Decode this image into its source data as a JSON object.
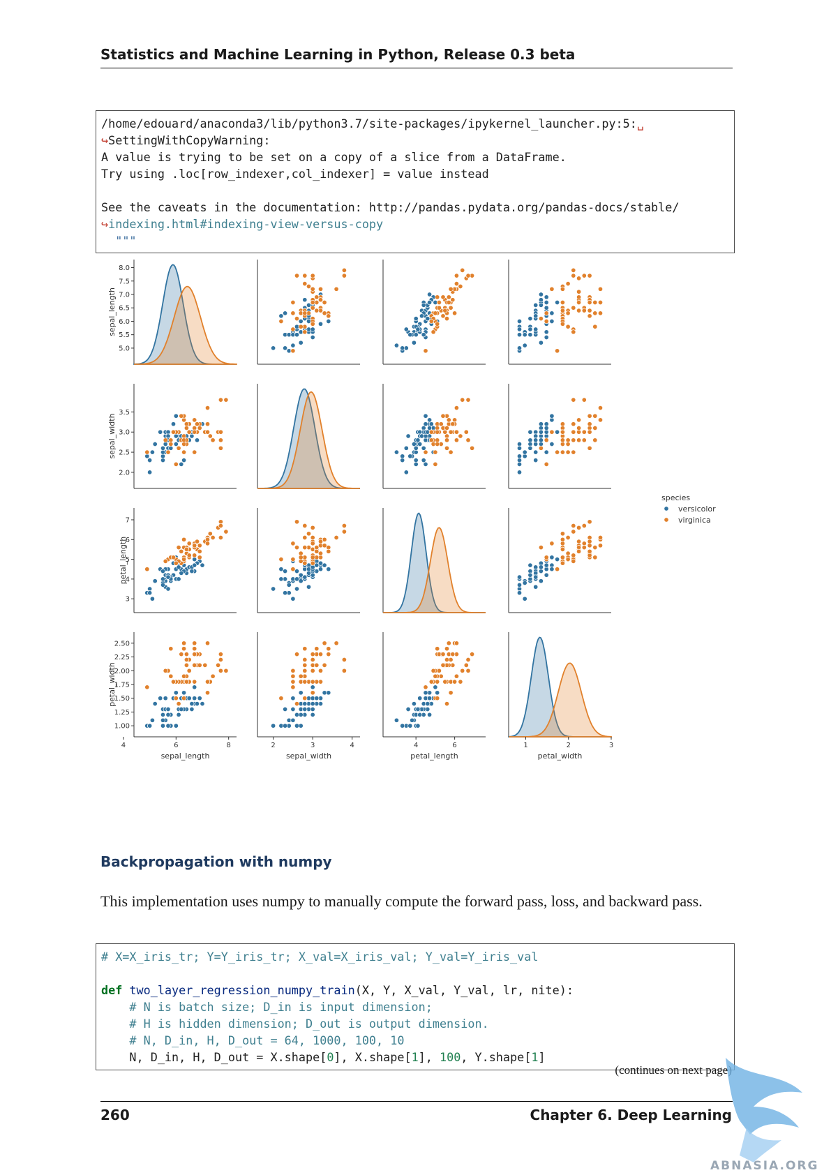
{
  "header": {
    "title": "Statistics and Machine Learning in Python, Release 0.3 beta"
  },
  "warning_code": {
    "path": "/home/edouard/anaconda3/lib/python3.7/site-packages/ipykernel_launcher.py:5:",
    "warning_name": "SettingWithCopyWarning:",
    "line_value": "A value is trying to be set on a copy of a slice from a DataFrame.",
    "line_try": "Try using .loc[row_indexer,col_indexer] = value instead",
    "line_see": "See the caveats in the documentation: http://pandas.pydata.org/pandas-docs/stable/",
    "line_indexing": "indexing.html#indexing-view-versus-copy",
    "line_quotes": "\"\"\""
  },
  "chart_data": {
    "type": "scatter",
    "variables": [
      "sepal_length",
      "sepal_width",
      "petal_length",
      "petal_width"
    ],
    "legend": {
      "title": "species",
      "entries": [
        "versicolor",
        "virginica"
      ],
      "placement": "right"
    },
    "colors": {
      "versicolor": "#3274a1",
      "virginica": "#e1812c"
    },
    "axis_ranges": {
      "sepal_length": [
        4.4,
        8.3
      ],
      "sepal_width": [
        1.6,
        4.2
      ],
      "petal_length": [
        2.3,
        7.6
      ],
      "petal_width": [
        0.8,
        2.7
      ]
    },
    "diag_x_ranges": {
      "sepal_length": [
        4,
        9
      ],
      "sepal_width": [
        1.4,
        4.4
      ],
      "petal_length": [
        2,
        8.5
      ],
      "petal_width": [
        0.6,
        3
      ]
    },
    "ticks": {
      "sepal_length_y": [
        "5.0",
        "5.5",
        "6.0",
        "6.5",
        "7.0",
        "7.5",
        "8.0"
      ],
      "sepal_width_y": [
        "2.0",
        "2.5",
        "3.0",
        "3.5"
      ],
      "petal_length_y": [
        "3",
        "4",
        "5",
        "6",
        "7"
      ],
      "petal_width_y": [
        "1.00",
        "1.25",
        "1.50",
        "1.75",
        "2.00",
        "2.25",
        "2.50"
      ],
      "sepal_length_x": [
        "4",
        "6",
        "8"
      ],
      "sepal_width_x": [
        "2",
        "3",
        "4"
      ],
      "petal_length_x": [
        "4",
        "6"
      ],
      "petal_width_x": [
        "1",
        "2",
        "3"
      ]
    },
    "kde": {
      "versicolor": {
        "sepal_length": [
          5.9,
          0.5
        ],
        "sepal_width": [
          2.77,
          0.31
        ],
        "petal_length": [
          4.26,
          0.47
        ],
        "petal_width": [
          1.33,
          0.2
        ]
      },
      "virginica": {
        "sepal_length": [
          6.6,
          0.64
        ],
        "sepal_width": [
          2.97,
          0.32
        ],
        "petal_length": [
          5.55,
          0.55
        ],
        "petal_width": [
          2.03,
          0.27
        ]
      }
    },
    "series": [
      {
        "name": "versicolor",
        "points": [
          [
            7.0,
            3.2,
            4.7,
            1.4
          ],
          [
            6.4,
            3.2,
            4.5,
            1.5
          ],
          [
            6.9,
            3.1,
            4.9,
            1.5
          ],
          [
            5.5,
            2.3,
            4.0,
            1.3
          ],
          [
            6.5,
            2.8,
            4.6,
            1.5
          ],
          [
            5.7,
            2.8,
            4.5,
            1.3
          ],
          [
            6.3,
            3.3,
            4.7,
            1.6
          ],
          [
            4.9,
            2.4,
            3.3,
            1.0
          ],
          [
            6.6,
            2.9,
            4.6,
            1.3
          ],
          [
            5.2,
            2.7,
            3.9,
            1.4
          ],
          [
            5.0,
            2.0,
            3.5,
            1.0
          ],
          [
            5.9,
            3.0,
            4.2,
            1.5
          ],
          [
            6.0,
            2.2,
            4.0,
            1.0
          ],
          [
            6.1,
            2.9,
            4.7,
            1.4
          ],
          [
            5.6,
            2.9,
            3.6,
            1.3
          ],
          [
            6.7,
            3.1,
            4.4,
            1.4
          ],
          [
            5.6,
            3.0,
            4.5,
            1.5
          ],
          [
            5.8,
            2.7,
            4.1,
            1.0
          ],
          [
            6.2,
            2.2,
            4.5,
            1.5
          ],
          [
            5.6,
            2.5,
            3.9,
            1.1
          ],
          [
            5.9,
            3.2,
            4.8,
            1.8
          ],
          [
            6.1,
            2.8,
            4.0,
            1.3
          ],
          [
            6.3,
            2.5,
            4.9,
            1.5
          ],
          [
            6.1,
            2.8,
            4.7,
            1.2
          ],
          [
            6.4,
            2.9,
            4.3,
            1.3
          ],
          [
            6.6,
            3.0,
            4.4,
            1.4
          ],
          [
            6.8,
            2.8,
            4.8,
            1.4
          ],
          [
            6.7,
            3.0,
            5.0,
            1.7
          ],
          [
            6.0,
            2.9,
            4.5,
            1.5
          ],
          [
            5.7,
            2.6,
            3.5,
            1.0
          ],
          [
            5.5,
            2.4,
            3.8,
            1.1
          ],
          [
            5.5,
            2.4,
            3.7,
            1.0
          ],
          [
            5.8,
            2.7,
            3.9,
            1.2
          ],
          [
            6.0,
            2.7,
            5.1,
            1.6
          ],
          [
            5.4,
            3.0,
            4.5,
            1.5
          ],
          [
            6.0,
            3.4,
            4.5,
            1.6
          ],
          [
            6.7,
            3.1,
            4.7,
            1.5
          ],
          [
            6.3,
            2.3,
            4.4,
            1.3
          ],
          [
            5.6,
            3.0,
            4.1,
            1.3
          ],
          [
            5.5,
            2.5,
            4.0,
            1.3
          ],
          [
            5.5,
            2.6,
            4.4,
            1.2
          ],
          [
            6.1,
            3.0,
            4.6,
            1.4
          ],
          [
            5.8,
            2.6,
            4.0,
            1.2
          ],
          [
            5.0,
            2.3,
            3.3,
            1.0
          ],
          [
            5.6,
            2.7,
            4.2,
            1.3
          ],
          [
            5.7,
            3.0,
            4.2,
            1.2
          ],
          [
            5.7,
            2.9,
            4.2,
            1.3
          ],
          [
            6.2,
            2.9,
            4.3,
            1.3
          ],
          [
            5.1,
            2.5,
            3.0,
            1.1
          ],
          [
            5.7,
            2.8,
            4.1,
            1.3
          ]
        ]
      },
      {
        "name": "virginica",
        "points": [
          [
            6.3,
            3.3,
            6.0,
            2.5
          ],
          [
            5.8,
            2.7,
            5.1,
            1.9
          ],
          [
            7.1,
            3.0,
            5.9,
            2.1
          ],
          [
            6.3,
            2.9,
            5.6,
            1.8
          ],
          [
            6.5,
            3.0,
            5.8,
            2.2
          ],
          [
            7.6,
            3.0,
            6.6,
            2.1
          ],
          [
            4.9,
            2.5,
            4.5,
            1.7
          ],
          [
            7.3,
            2.9,
            6.3,
            1.8
          ],
          [
            6.7,
            2.5,
            5.8,
            1.8
          ],
          [
            7.2,
            3.6,
            6.1,
            2.5
          ],
          [
            6.5,
            3.2,
            5.1,
            2.0
          ],
          [
            6.4,
            2.7,
            5.3,
            1.9
          ],
          [
            6.8,
            3.0,
            5.5,
            2.1
          ],
          [
            5.7,
            2.5,
            5.0,
            2.0
          ],
          [
            5.8,
            2.8,
            5.1,
            2.4
          ],
          [
            6.4,
            3.2,
            5.3,
            2.3
          ],
          [
            6.5,
            3.0,
            5.5,
            1.8
          ],
          [
            7.7,
            3.8,
            6.7,
            2.2
          ],
          [
            7.7,
            2.6,
            6.9,
            2.3
          ],
          [
            6.0,
            2.2,
            5.0,
            1.5
          ],
          [
            6.9,
            3.2,
            5.7,
            2.3
          ],
          [
            5.6,
            2.8,
            4.9,
            2.0
          ],
          [
            7.7,
            2.8,
            6.7,
            2.0
          ],
          [
            6.3,
            2.7,
            4.9,
            1.8
          ],
          [
            6.7,
            3.3,
            5.7,
            2.1
          ],
          [
            7.2,
            3.2,
            6.0,
            1.8
          ],
          [
            6.2,
            2.8,
            4.8,
            1.8
          ],
          [
            6.1,
            3.0,
            4.9,
            1.8
          ],
          [
            6.4,
            2.8,
            5.6,
            2.1
          ],
          [
            7.2,
            3.0,
            5.8,
            1.6
          ],
          [
            7.4,
            2.8,
            6.1,
            1.9
          ],
          [
            7.9,
            3.8,
            6.4,
            2.0
          ],
          [
            6.4,
            2.8,
            5.6,
            2.2
          ],
          [
            6.3,
            2.8,
            5.1,
            1.5
          ],
          [
            6.1,
            2.6,
            5.6,
            1.4
          ],
          [
            7.7,
            3.0,
            6.1,
            2.3
          ],
          [
            6.3,
            3.4,
            5.6,
            2.4
          ],
          [
            6.4,
            3.1,
            5.5,
            1.8
          ],
          [
            6.0,
            3.0,
            4.8,
            1.8
          ],
          [
            6.9,
            3.1,
            5.4,
            2.1
          ],
          [
            6.7,
            3.1,
            5.6,
            2.4
          ],
          [
            6.9,
            3.1,
            5.1,
            2.3
          ],
          [
            5.8,
            2.7,
            5.1,
            1.9
          ],
          [
            6.8,
            3.2,
            5.9,
            2.3
          ],
          [
            6.7,
            3.3,
            5.7,
            2.5
          ],
          [
            6.7,
            3.0,
            5.2,
            2.3
          ],
          [
            6.3,
            2.5,
            5.0,
            1.9
          ],
          [
            6.5,
            3.0,
            5.2,
            2.0
          ],
          [
            6.2,
            3.4,
            5.4,
            2.3
          ],
          [
            5.9,
            3.0,
            5.1,
            1.8
          ]
        ]
      }
    ]
  },
  "section": {
    "title": "Backpropagation with numpy"
  },
  "paragraph": {
    "text": "This implementation uses numpy to manually compute the forward pass, loss, and backward pass."
  },
  "train_code": {
    "l1_comment": "# X=X_iris_tr; Y=Y_iris_tr; X_val=X_iris_val; Y_val=Y_iris_val",
    "l2_def": "def",
    "l2_fname": "two_layer_regression_numpy_train",
    "l2_args": "(X, Y, X_val, Y_val, lr, nite):",
    "l3_comment": "    # N is batch size; D_in is input dimension;",
    "l4_comment": "    # H is hidden dimension; D_out is output dimension.",
    "l5_comment": "    # N, D_in, H, D_out = 64, 1000, 100, 10",
    "l6_a": "    N, D_in, H, D_out = X.shape[",
    "l6_n0": "0",
    "l6_b": "], X.shape[",
    "l6_n1": "1",
    "l6_c": "], ",
    "l6_n100": "100",
    "l6_d": ", Y.shape[",
    "l6_n1b": "1",
    "l6_e": "]"
  },
  "continues": "(continues on next page)",
  "footer": {
    "page_number": "260",
    "chapter": "Chapter 6.  Deep Learning"
  },
  "watermark": "ABNASIA.ORG"
}
